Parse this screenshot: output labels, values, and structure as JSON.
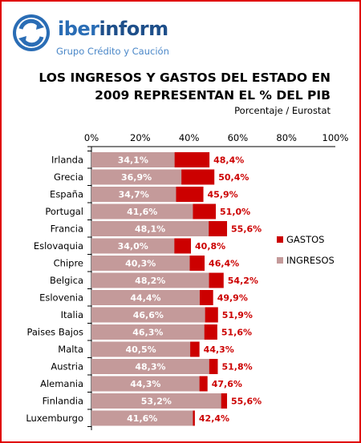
{
  "brand": {
    "name_part1": "iber",
    "name_part2": "inform",
    "tagline": "Grupo Crédito y Caución",
    "colors": {
      "primary": "#2a6db5",
      "dark": "#1e4f8a"
    }
  },
  "chart_data": {
    "type": "bar",
    "title_line1": "LOS INGRESOS Y GASTOS DEL ESTADO EN",
    "title_line2": "2009 REPRESENTAN EL % DEL PIB",
    "subtitle": "Porcentaje / Eurostat",
    "xlim": [
      0,
      100
    ],
    "x_ticks": [
      "0%",
      "20%",
      "40%",
      "60%",
      "80%",
      "100%"
    ],
    "categories": [
      "Irlanda",
      "Grecia",
      "España",
      "Portugal",
      "Francia",
      "Eslovaquia",
      "Chipre",
      "Belgica",
      "Eslovenia",
      "Italia",
      "Paises Bajos",
      "Malta",
      "Austria",
      "Alemania",
      "Finlandia",
      "Luxemburgo"
    ],
    "series": [
      {
        "name": "GASTOS",
        "color": "#cc0000",
        "values": [
          48.4,
          50.4,
          45.9,
          51.0,
          55.6,
          40.8,
          46.4,
          54.2,
          49.9,
          51.9,
          51.6,
          44.3,
          51.8,
          47.6,
          55.6,
          42.4
        ],
        "labels": [
          "48,4%",
          "50,4%",
          "45,9%",
          "51,0%",
          "55,6%",
          "40,8%",
          "46,4%",
          "54,2%",
          "49,9%",
          "51,9%",
          "51,6%",
          "44,3%",
          "51,8%",
          "47,6%",
          "55,6%",
          "42,4%"
        ]
      },
      {
        "name": "INGRESOS",
        "color": "#c49a9a",
        "values": [
          34.1,
          36.9,
          34.7,
          41.6,
          48.1,
          34.0,
          40.3,
          48.2,
          44.4,
          46.6,
          46.3,
          40.5,
          48.3,
          44.3,
          53.2,
          41.6
        ],
        "labels": [
          "34,1%",
          "36,9%",
          "34,7%",
          "41,6%",
          "48,1%",
          "34,0%",
          "40,3%",
          "48,2%",
          "44,4%",
          "46,6%",
          "46,3%",
          "40,5%",
          "48,3%",
          "44,3%",
          "53,2%",
          "41,6%"
        ]
      }
    ],
    "legend_position": "right",
    "grid": false
  }
}
